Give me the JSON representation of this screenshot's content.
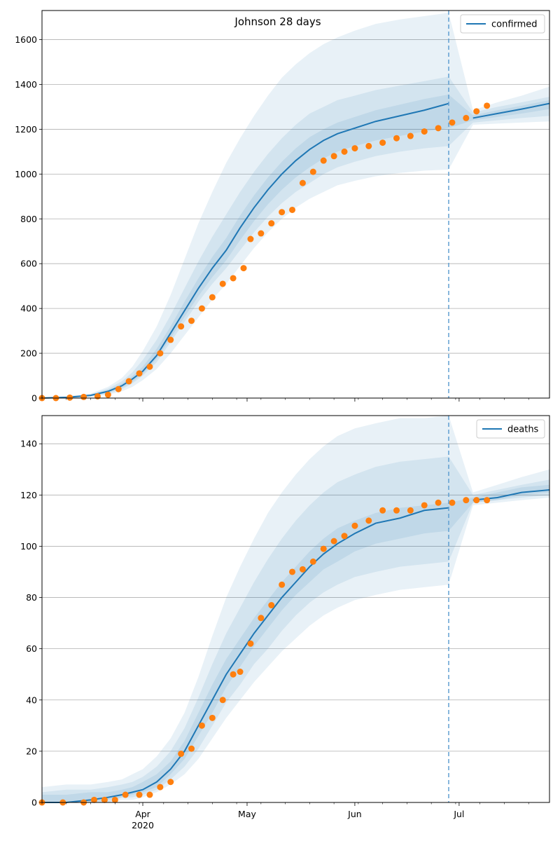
{
  "figure_title": "Johnson 28 days",
  "colors": {
    "model": "#1f77b4",
    "observed": "#ff7f0e",
    "band": "#1f77b4",
    "grid": "#b0b0b0",
    "vline": "#5f9ed1"
  },
  "x_axis": {
    "start": "2020-03-03",
    "end": "2020-07-27",
    "month_ticks": [
      {
        "date": "2020-04-01",
        "label": "Apr",
        "sub": "2020"
      },
      {
        "date": "2020-05-01",
        "label": "May",
        "sub": ""
      },
      {
        "date": "2020-06-01",
        "label": "Jun",
        "sub": ""
      },
      {
        "date": "2020-07-01",
        "label": "Jul",
        "sub": ""
      }
    ],
    "forecast_date": "2020-06-28"
  },
  "chart_data": [
    {
      "type": "line",
      "title": "Johnson 28 days",
      "legend": "top-right",
      "legend_label": "confirmed",
      "ylim": [
        0,
        1730
      ],
      "yticks": [
        0,
        200,
        400,
        600,
        800,
        1000,
        1200,
        1400,
        1600
      ],
      "grid": true,
      "model_series": {
        "name": "confirmed",
        "x": [
          "2020-03-03",
          "2020-03-10",
          "2020-03-17",
          "2020-03-22",
          "2020-03-26",
          "2020-03-29",
          "2020-04-01",
          "2020-04-05",
          "2020-04-09",
          "2020-04-13",
          "2020-04-17",
          "2020-04-21",
          "2020-04-25",
          "2020-04-29",
          "2020-05-03",
          "2020-05-07",
          "2020-05-11",
          "2020-05-15",
          "2020-05-19",
          "2020-05-23",
          "2020-05-27",
          "2020-06-01",
          "2020-06-07",
          "2020-06-14",
          "2020-06-21",
          "2020-06-28",
          "2020-07-05",
          "2020-07-12",
          "2020-07-19",
          "2020-07-27"
        ],
        "values": [
          0,
          3,
          12,
          30,
          55,
          85,
          120,
          190,
          290,
          390,
          490,
          580,
          660,
          760,
          850,
          930,
          1000,
          1060,
          1110,
          1150,
          1180,
          1205,
          1235,
          1260,
          1285,
          1315,
          1250,
          1270,
          1290,
          1315
        ],
        "bands": [
          {
            "lower": [
              0,
              0,
              5,
              15,
              30,
              50,
              80,
              130,
              200,
              280,
              360,
              440,
              510,
              590,
              670,
              740,
              800,
              850,
              890,
              920,
              950,
              970,
              990,
              1005,
              1015,
              1020,
              1220,
              1225,
              1230,
              1235
            ],
            "upper": [
              5,
              8,
              20,
              50,
              90,
              140,
              210,
              320,
              460,
              620,
              780,
              920,
              1050,
              1160,
              1260,
              1350,
              1430,
              1490,
              1540,
              1580,
              1610,
              1640,
              1670,
              1690,
              1705,
              1720,
              1285,
              1320,
              1350,
              1390
            ],
            "opacity": 0.1
          },
          {
            "lower": [
              0,
              0,
              7,
              20,
              40,
              65,
              100,
              160,
              250,
              340,
              430,
              510,
              580,
              660,
              740,
              810,
              870,
              920,
              960,
              1000,
              1030,
              1055,
              1080,
              1100,
              1115,
              1125,
              1230,
              1240,
              1250,
              1260
            ],
            "upper": [
              3,
              6,
              17,
              42,
              75,
              115,
              170,
              260,
              370,
              490,
              610,
              720,
              820,
              920,
              1010,
              1090,
              1160,
              1220,
              1270,
              1300,
              1330,
              1350,
              1375,
              1395,
              1415,
              1435,
              1275,
              1300,
              1320,
              1345
            ],
            "opacity": 0.1
          },
          {
            "lower": [
              0,
              1,
              9,
              24,
              46,
              73,
              108,
              175,
              268,
              362,
              455,
              540,
              615,
              705,
              790,
              865,
              930,
              985,
              1030,
              1070,
              1100,
              1125,
              1150,
              1170,
              1190,
              1205,
              1240,
              1255,
              1270,
              1290
            ],
            "upper": [
              2,
              5,
              15,
              36,
              65,
              98,
              140,
              220,
              320,
              430,
              535,
              630,
              715,
              815,
              905,
              985,
              1055,
              1115,
              1165,
              1200,
              1230,
              1255,
              1285,
              1310,
              1335,
              1355,
              1262,
              1285,
              1305,
              1330
            ],
            "opacity": 0.1
          }
        ]
      },
      "observed_series": {
        "name": "observed",
        "x": [
          "2020-03-03",
          "2020-03-07",
          "2020-03-11",
          "2020-03-15",
          "2020-03-19",
          "2020-03-22",
          "2020-03-25",
          "2020-03-28",
          "2020-03-31",
          "2020-04-03",
          "2020-04-06",
          "2020-04-09",
          "2020-04-12",
          "2020-04-15",
          "2020-04-18",
          "2020-04-21",
          "2020-04-24",
          "2020-04-27",
          "2020-04-30",
          "2020-05-02",
          "2020-05-05",
          "2020-05-08",
          "2020-05-11",
          "2020-05-14",
          "2020-05-17",
          "2020-05-20",
          "2020-05-23",
          "2020-05-26",
          "2020-05-29",
          "2020-06-01",
          "2020-06-05",
          "2020-06-09",
          "2020-06-13",
          "2020-06-17",
          "2020-06-21",
          "2020-06-25",
          "2020-06-29",
          "2020-07-03",
          "2020-07-06",
          "2020-07-09"
        ],
        "values": [
          0,
          0,
          2,
          5,
          8,
          15,
          40,
          75,
          110,
          140,
          200,
          260,
          320,
          345,
          400,
          450,
          510,
          535,
          580,
          710,
          735,
          780,
          830,
          840,
          960,
          1010,
          1060,
          1080,
          1100,
          1115,
          1125,
          1140,
          1160,
          1170,
          1190,
          1205,
          1230,
          1250,
          1280,
          1305
        ]
      }
    },
    {
      "type": "line",
      "title": "",
      "legend": "top-right",
      "legend_label": "deaths",
      "ylim": [
        0,
        151
      ],
      "yticks": [
        0,
        20,
        40,
        60,
        80,
        100,
        120,
        140
      ],
      "grid": true,
      "model_series": {
        "name": "deaths",
        "x": [
          "2020-03-03",
          "2020-03-10",
          "2020-03-17",
          "2020-03-22",
          "2020-03-26",
          "2020-03-29",
          "2020-04-01",
          "2020-04-05",
          "2020-04-09",
          "2020-04-13",
          "2020-04-17",
          "2020-04-21",
          "2020-04-25",
          "2020-04-29",
          "2020-05-03",
          "2020-05-07",
          "2020-05-11",
          "2020-05-15",
          "2020-05-19",
          "2020-05-23",
          "2020-05-27",
          "2020-06-01",
          "2020-06-07",
          "2020-06-14",
          "2020-06-21",
          "2020-06-28",
          "2020-07-05",
          "2020-07-12",
          "2020-07-19",
          "2020-07-27"
        ],
        "values": [
          0,
          0,
          1,
          2,
          3,
          4,
          5,
          8,
          13,
          20,
          30,
          40,
          50,
          58,
          66,
          73,
          80,
          86,
          92,
          97,
          101,
          105,
          109,
          111,
          114,
          115,
          118,
          119,
          121,
          122
        ],
        "bands": [
          {
            "lower": [
              0,
              0,
              0,
              0,
              1,
              1,
              2,
              4,
              7,
              11,
              17,
              25,
              33,
              40,
              47,
              53,
              59,
              64,
              69,
              73,
              76,
              79,
              81,
              83,
              84,
              85,
              116,
              117,
              118,
              119
            ],
            "upper": [
              6,
              7,
              7,
              8,
              9,
              11,
              13,
              18,
              25,
              35,
              49,
              65,
              80,
              92,
              103,
              113,
              121,
              128,
              134,
              139,
              143,
              146,
              148,
              150,
              150,
              151,
              121,
              124,
              127,
              130
            ],
            "opacity": 0.1
          },
          {
            "lower": [
              0,
              0,
              0,
              0,
              2,
              2,
              3,
              5,
              9,
              14,
              21,
              30,
              39,
              46,
              54,
              60,
              67,
              73,
              78,
              82,
              85,
              88,
              90,
              92,
              93,
              94,
              117,
              118,
              119,
              120
            ],
            "upper": [
              4,
              5,
              5,
              6,
              7,
              8,
              10,
              14,
              20,
              29,
              41,
              54,
              66,
              76,
              86,
              95,
              103,
              110,
              116,
              121,
              125,
              128,
              131,
              133,
              134,
              135,
              120,
              122,
              124,
              126
            ],
            "opacity": 0.1
          },
          {
            "lower": [
              0,
              0,
              0,
              1,
              2,
              3,
              4,
              6,
              11,
              17,
              26,
              35,
              45,
              53,
              61,
              68,
              75,
              81,
              86,
              91,
              94,
              98,
              101,
              103,
              105,
              106,
              117,
              118,
              120,
              121
            ],
            "upper": [
              3,
              3,
              4,
              4,
              5,
              6,
              8,
              11,
              16,
              24,
              35,
              46,
              56,
              64,
              72,
              79,
              86,
              92,
              98,
              103,
              107,
              110,
              113,
              115,
              116,
              117,
              119,
              121,
              123,
              124
            ],
            "opacity": 0.1
          }
        ]
      },
      "observed_series": {
        "name": "observed",
        "x": [
          "2020-03-03",
          "2020-03-09",
          "2020-03-15",
          "2020-03-18",
          "2020-03-21",
          "2020-03-24",
          "2020-03-27",
          "2020-03-31",
          "2020-04-03",
          "2020-04-06",
          "2020-04-09",
          "2020-04-12",
          "2020-04-15",
          "2020-04-18",
          "2020-04-21",
          "2020-04-24",
          "2020-04-27",
          "2020-04-29",
          "2020-05-02",
          "2020-05-05",
          "2020-05-08",
          "2020-05-11",
          "2020-05-14",
          "2020-05-17",
          "2020-05-20",
          "2020-05-23",
          "2020-05-26",
          "2020-05-29",
          "2020-06-01",
          "2020-06-05",
          "2020-06-09",
          "2020-06-13",
          "2020-06-17",
          "2020-06-21",
          "2020-06-25",
          "2020-06-29",
          "2020-07-03",
          "2020-07-06",
          "2020-07-09"
        ],
        "values": [
          0,
          0,
          0,
          1,
          1,
          1,
          3,
          3,
          3,
          6,
          8,
          19,
          21,
          30,
          33,
          40,
          50,
          51,
          62,
          72,
          77,
          85,
          90,
          91,
          94,
          99,
          102,
          104,
          108,
          110,
          114,
          114,
          114,
          116,
          117,
          117,
          118,
          118,
          118
        ]
      }
    }
  ]
}
